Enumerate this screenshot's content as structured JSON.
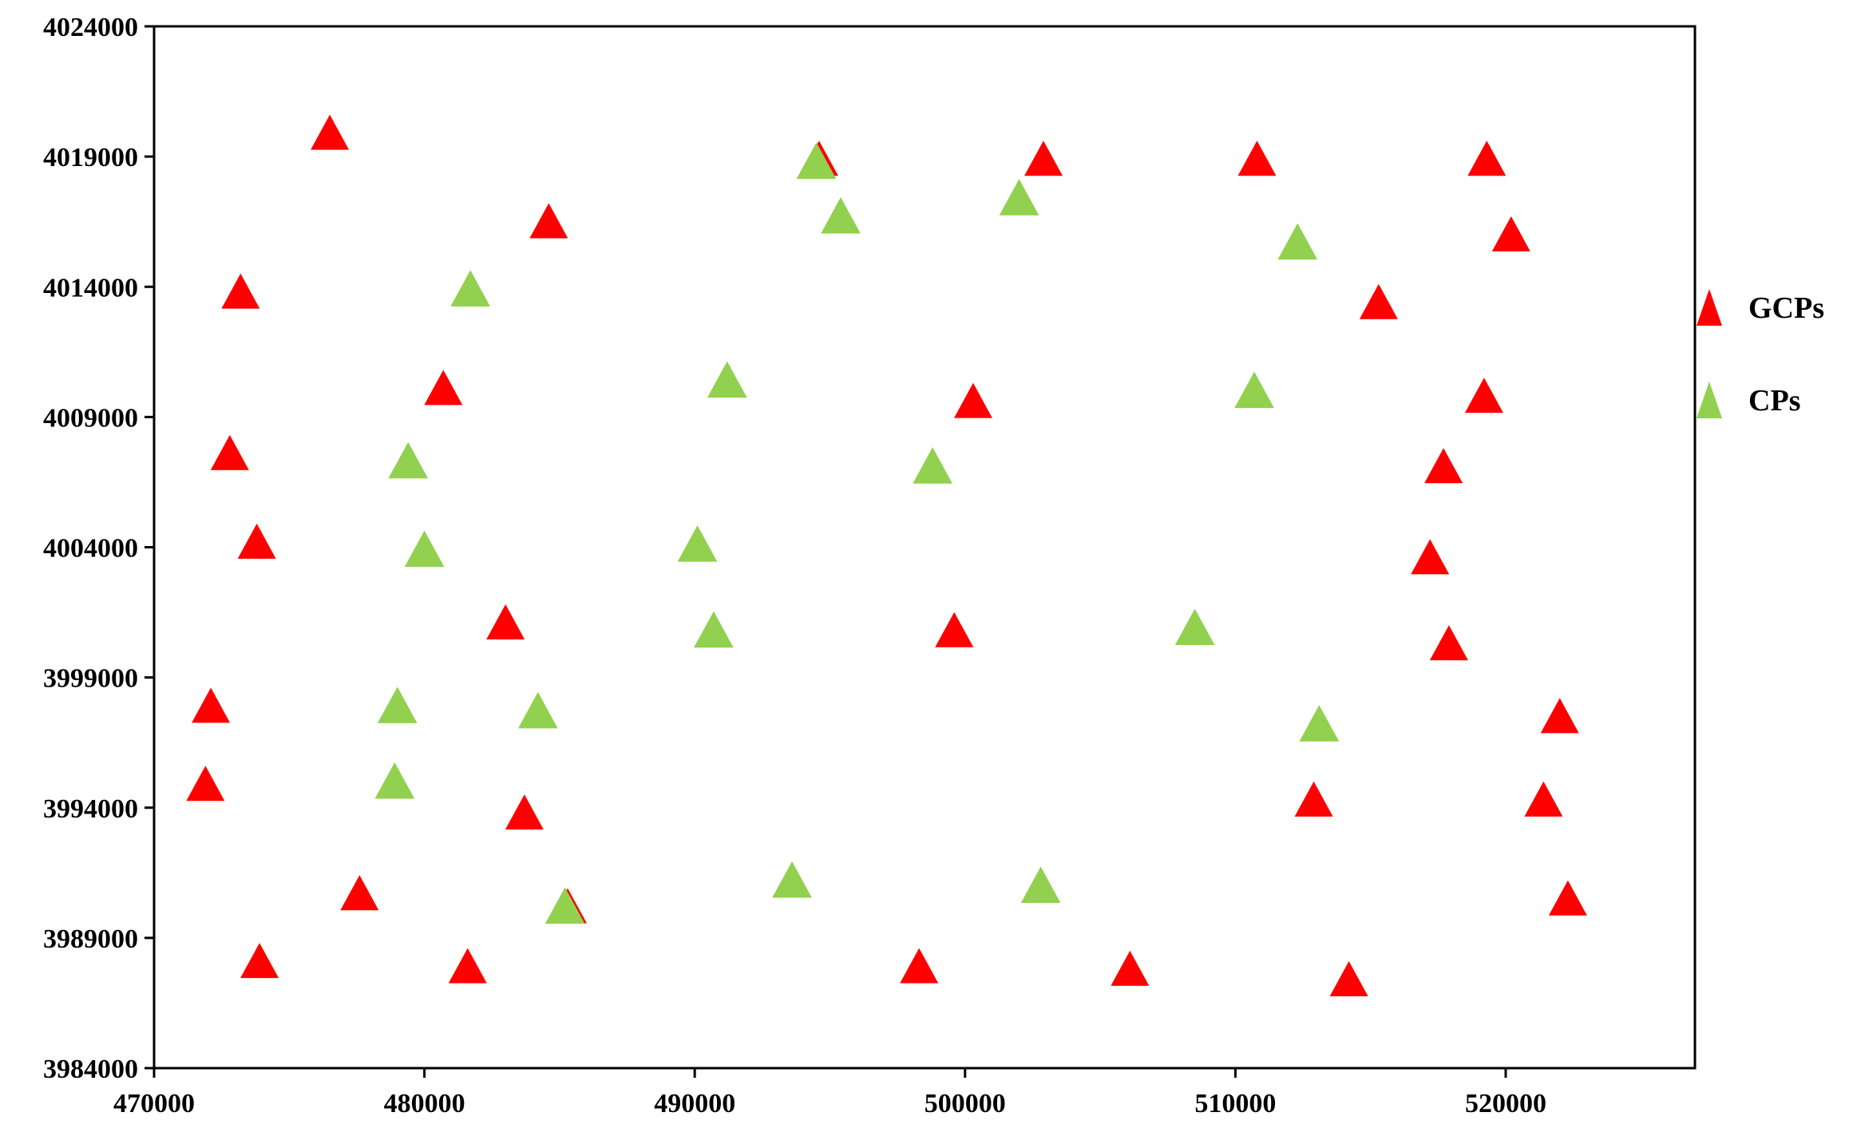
{
  "chart_data": {
    "type": "scatter",
    "title": "",
    "xlabel": "",
    "ylabel": "",
    "xlim": [
      470000,
      527000
    ],
    "ylim": [
      3984000,
      4024000
    ],
    "xticks": [
      470000,
      480000,
      490000,
      500000,
      510000,
      520000
    ],
    "yticks": [
      3984000,
      3989000,
      3994000,
      3999000,
      4004000,
      4009000,
      4014000,
      4019000,
      4024000
    ],
    "xtick_labels": [
      "470000",
      "480000",
      "490000",
      "500000",
      "510000",
      "520000"
    ],
    "ytick_labels": [
      "3984000",
      "3989000",
      "3994000",
      "3999000",
      "4004000",
      "4009000",
      "4014000",
      "4019000",
      "4024000"
    ],
    "grid": false,
    "legend_position": "right",
    "marker": "triangle",
    "series": [
      {
        "name": "GCPs",
        "color": "#ff0000",
        "points": [
          [
            476500,
            4019800
          ],
          [
            494600,
            4018800
          ],
          [
            502900,
            4018800
          ],
          [
            510800,
            4018800
          ],
          [
            519300,
            4018800
          ],
          [
            484600,
            4016400
          ],
          [
            520200,
            4015900
          ],
          [
            473200,
            4013700
          ],
          [
            515300,
            4013300
          ],
          [
            480700,
            4010000
          ],
          [
            500300,
            4009500
          ],
          [
            519200,
            4009700
          ],
          [
            472800,
            4007500
          ],
          [
            517700,
            4007000
          ],
          [
            473800,
            4004100
          ],
          [
            517200,
            4003500
          ],
          [
            483000,
            4001000
          ],
          [
            499600,
            4000700
          ],
          [
            517900,
            4000200
          ],
          [
            472100,
            3997800
          ],
          [
            522000,
            3997400
          ],
          [
            471900,
            3994800
          ],
          [
            483700,
            3993700
          ],
          [
            512900,
            3994200
          ],
          [
            521400,
            3994200
          ],
          [
            477600,
            3990600
          ],
          [
            485300,
            3990100
          ],
          [
            522300,
            3990400
          ],
          [
            473900,
            3988000
          ],
          [
            481600,
            3987800
          ],
          [
            498300,
            3987800
          ],
          [
            506100,
            3987700
          ],
          [
            514200,
            3987300
          ]
        ]
      },
      {
        "name": "CPs",
        "color": "#92d050",
        "points": [
          [
            494500,
            4018700
          ],
          [
            502000,
            4017300
          ],
          [
            495400,
            4016600
          ],
          [
            512300,
            4015600
          ],
          [
            481700,
            4013800
          ],
          [
            491200,
            4010300
          ],
          [
            510700,
            4009900
          ],
          [
            479400,
            4007200
          ],
          [
            498800,
            4007000
          ],
          [
            480000,
            4003800
          ],
          [
            490100,
            4004000
          ],
          [
            490700,
            4000700
          ],
          [
            508500,
            4000800
          ],
          [
            479000,
            3997800
          ],
          [
            484200,
            3997600
          ],
          [
            513100,
            3997100
          ],
          [
            478900,
            3994900
          ],
          [
            493600,
            3991100
          ],
          [
            502800,
            3990900
          ],
          [
            485200,
            3990100
          ]
        ]
      }
    ]
  }
}
